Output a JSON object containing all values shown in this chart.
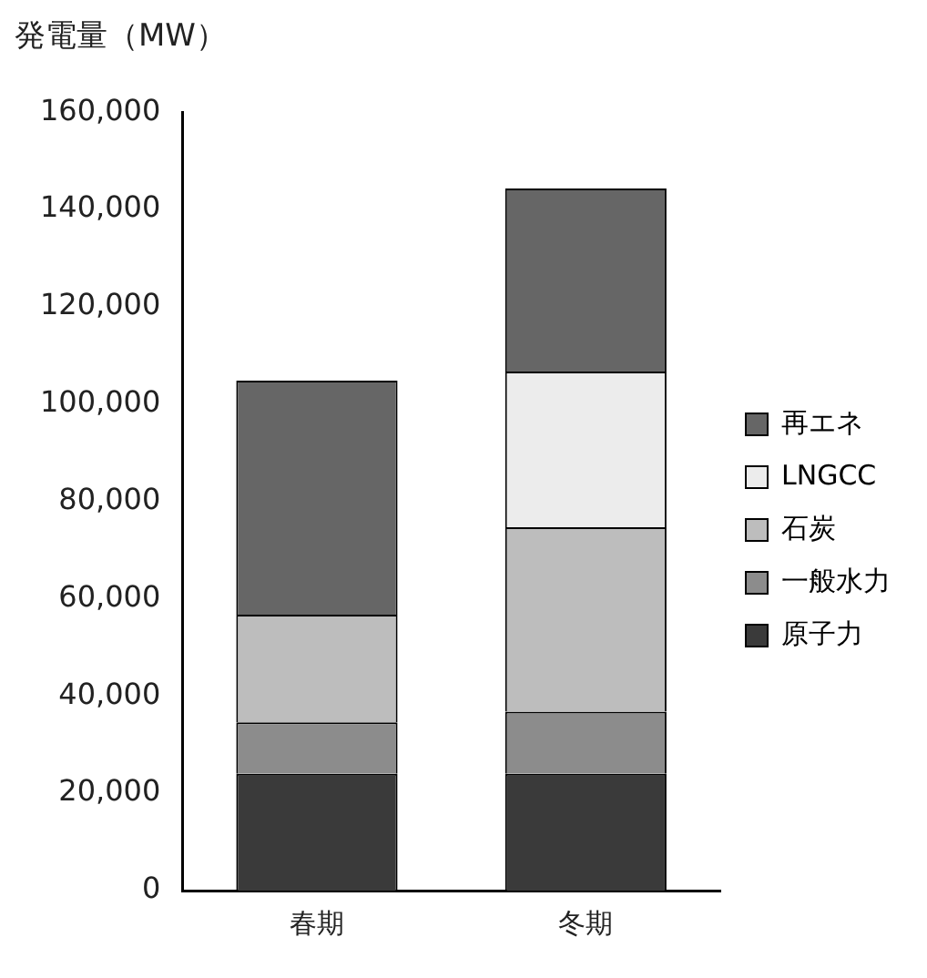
{
  "chart_data": {
    "type": "bar",
    "ylabel": "発電量（MW）",
    "categories": [
      "春期",
      "冬期"
    ],
    "stacked": true,
    "legend": "right",
    "grid": false,
    "ylim": [
      0,
      160000
    ],
    "yticks": [
      {
        "value": 0,
        "label": "0"
      },
      {
        "value": 20000,
        "label": "20,000"
      },
      {
        "value": 40000,
        "label": "40,000"
      },
      {
        "value": 60000,
        "label": "60,000"
      },
      {
        "value": 80000,
        "label": "80,000"
      },
      {
        "value": 100000,
        "label": "100,000"
      },
      {
        "value": 120000,
        "label": "120,000"
      },
      {
        "value": 140000,
        "label": "140,000"
      },
      {
        "value": 160000,
        "label": "160,000"
      }
    ],
    "series": [
      {
        "name": "原子力",
        "color": "#3a3a3a",
        "values": [
          24000,
          24000
        ]
      },
      {
        "name": "一般水力",
        "color": "#8c8c8c",
        "values": [
          10600,
          12800
        ]
      },
      {
        "name": "石炭",
        "color": "#bdbdbd",
        "values": [
          22100,
          37900
        ]
      },
      {
        "name": "LNGCC",
        "color": "#ececec",
        "values": [
          0,
          32000
        ]
      },
      {
        "name": "再エネ",
        "color": "#666666",
        "values": [
          48100,
          37600
        ]
      }
    ]
  }
}
